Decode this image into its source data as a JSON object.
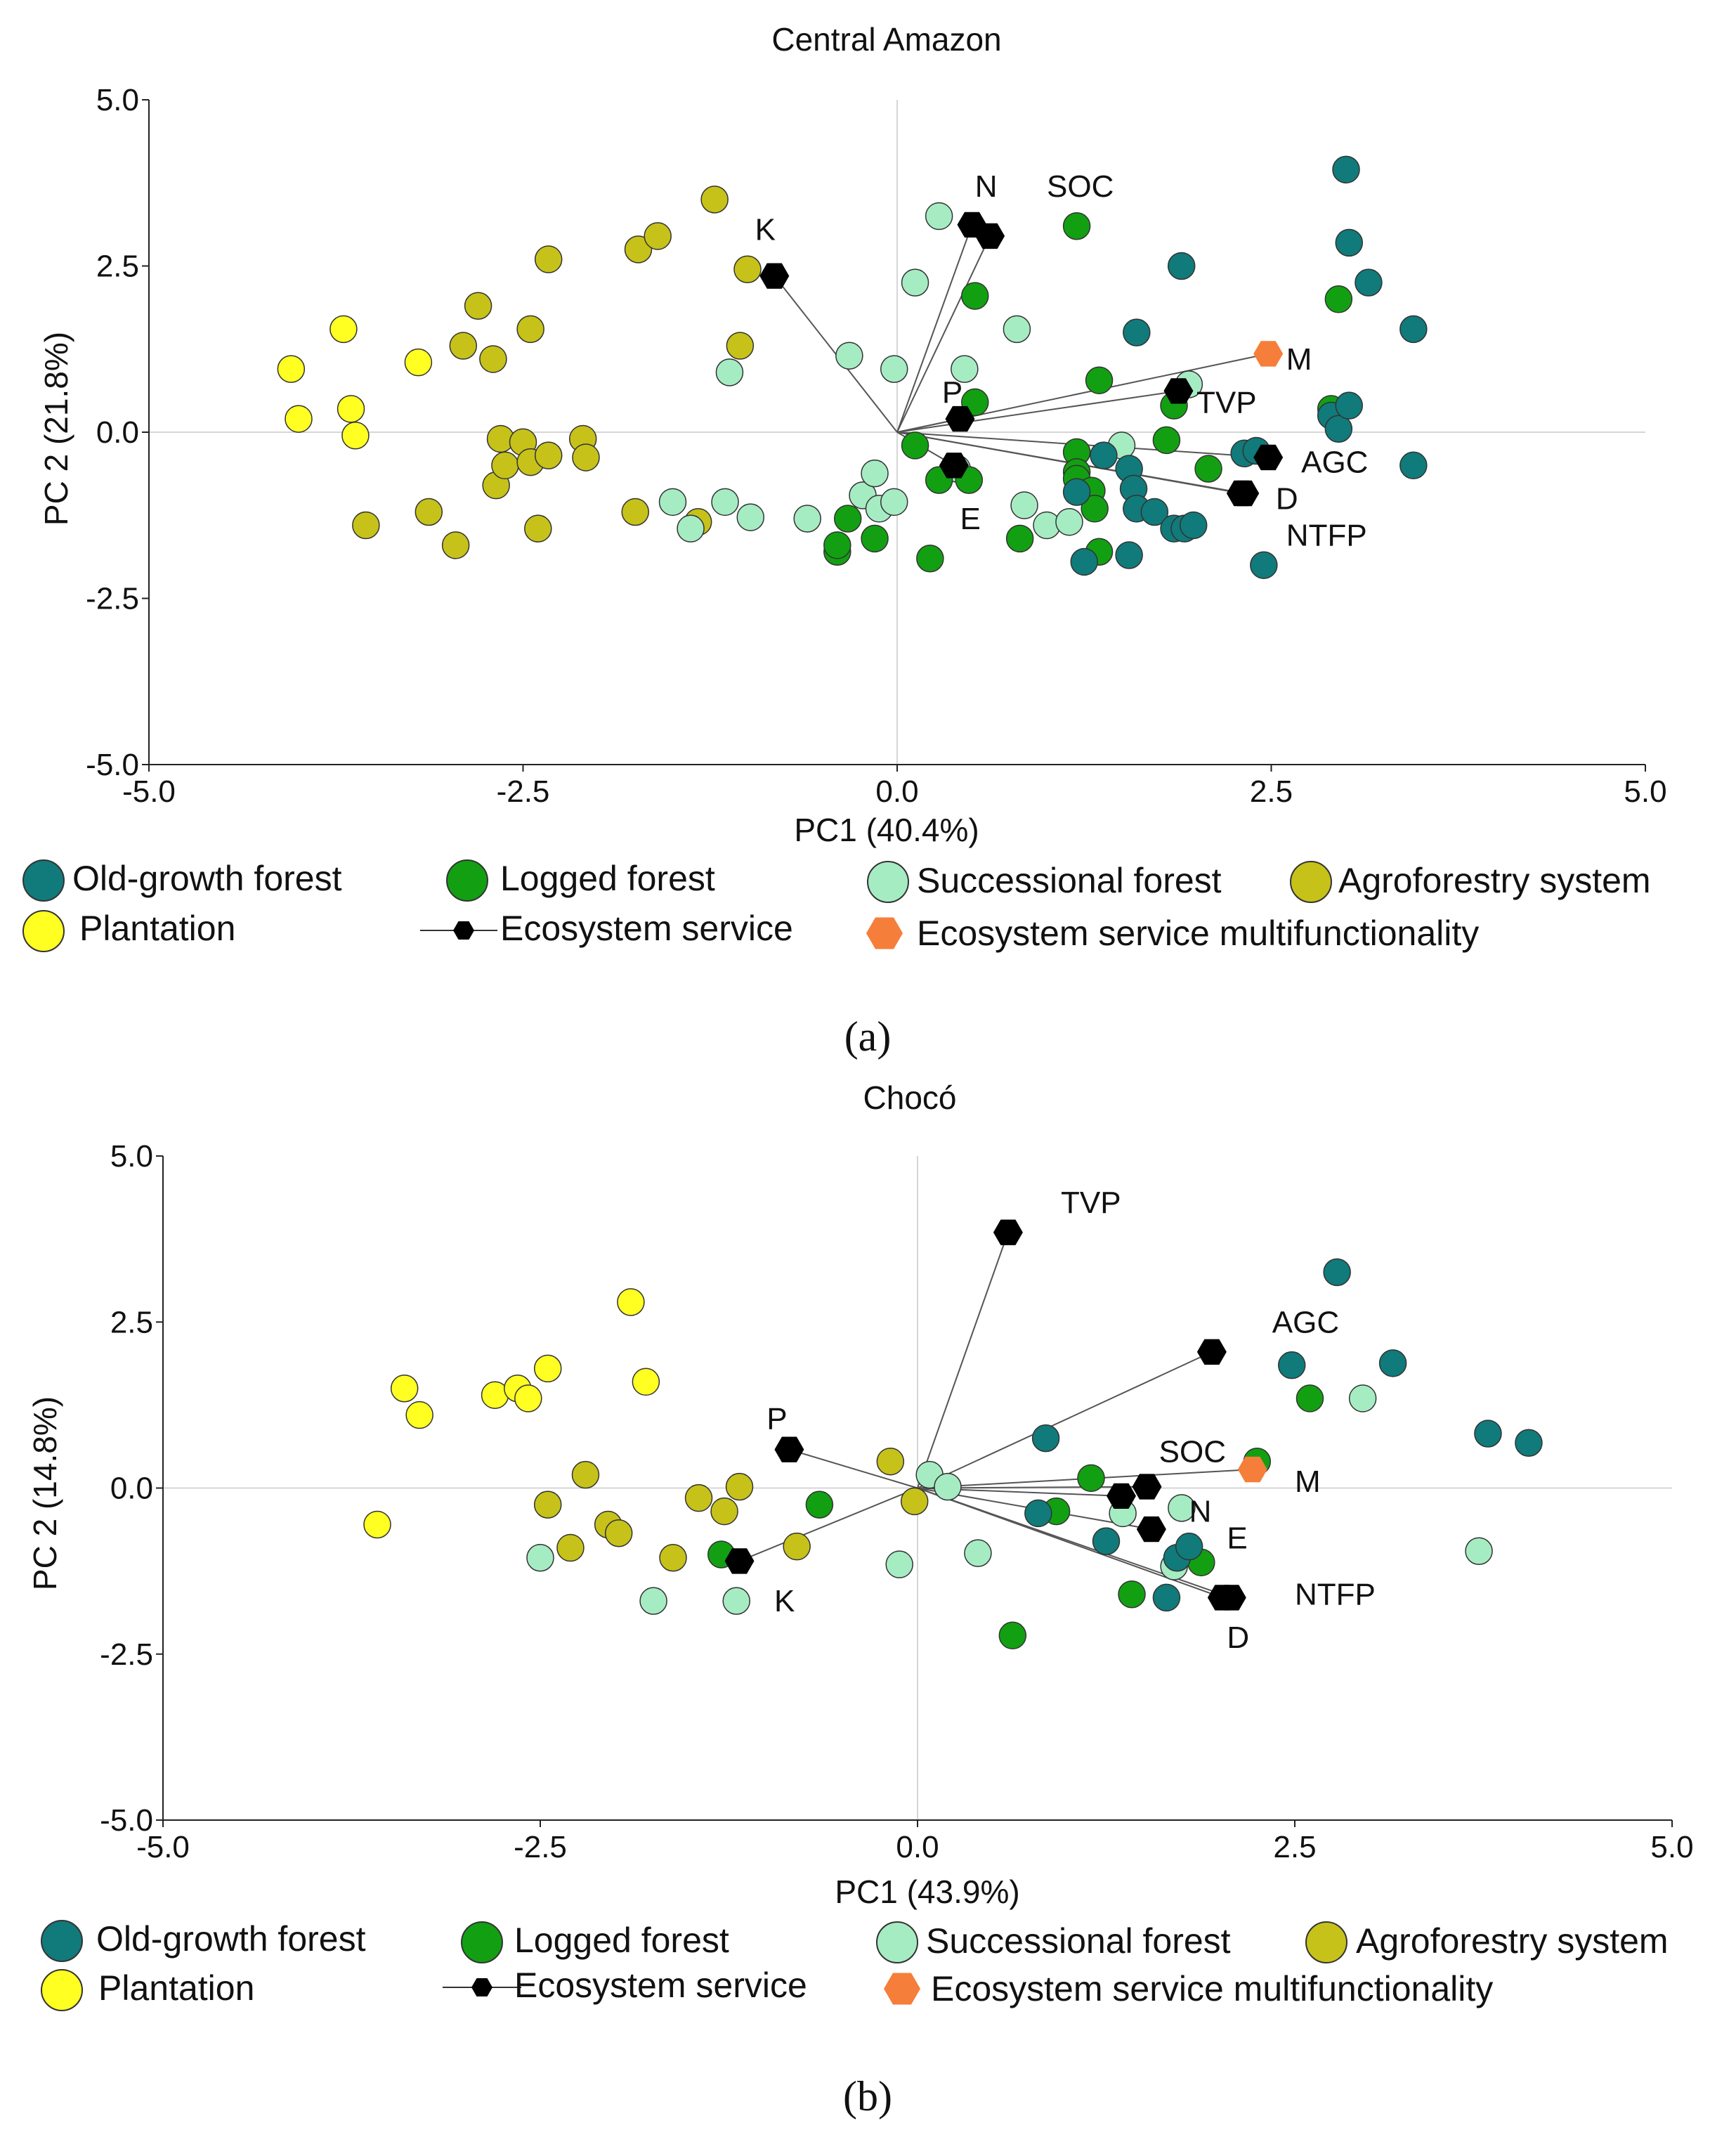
{
  "colors": {
    "old_growth": "#117a7a",
    "logged": "#12a012",
    "successional": "#a6ecc3",
    "agroforestry": "#c6c21a",
    "plantation": "#ffff22",
    "service": "#000000",
    "multifunctionality": "#f57e3a"
  },
  "legend": {
    "old_growth": "Old-growth forest",
    "logged": "Logged forest",
    "successional_a": "Successional forest",
    "successional_b": "Successional  forest",
    "agroforestry": "Agroforestry system",
    "plantation": "Plantation",
    "service": "Ecosystem service",
    "multifunctionality": "Ecosystem service multifunctionality"
  },
  "chart_data": [
    {
      "type": "scatter",
      "panel_label": "(a)",
      "title": "Central Amazon",
      "xlabel": "PC1 (40.4%)",
      "ylabel": "PC 2 (21.8%)",
      "xlim": [
        -5,
        5
      ],
      "ylim": [
        -5,
        5
      ],
      "xticks": [
        -5,
        -2.5,
        0,
        2.5,
        5
      ],
      "yticks": [
        -5,
        -2.5,
        0,
        2.5,
        5
      ],
      "xtick_labels": [
        "-5.0",
        "-2.5",
        "0.0",
        "2.5",
        "5.0"
      ],
      "ytick_labels": [
        "-5.0",
        "-2.5",
        "0.0",
        "2.5",
        "5.0"
      ],
      "series": [
        {
          "name": "Plantation",
          "key": "plantation",
          "points": [
            [
              -4.05,
              0.95
            ],
            [
              -4.0,
              0.2
            ],
            [
              -3.7,
              1.55
            ],
            [
              -3.65,
              0.35
            ],
            [
              -3.62,
              -0.05
            ],
            [
              -3.2,
              1.05
            ]
          ]
        },
        {
          "name": "Agroforestry system",
          "key": "agroforestry",
          "points": [
            [
              -3.55,
              -1.4
            ],
            [
              -3.13,
              -1.2
            ],
            [
              -2.95,
              -1.7
            ],
            [
              -2.9,
              1.3
            ],
            [
              -2.8,
              1.9
            ],
            [
              -2.7,
              1.1
            ],
            [
              -2.68,
              -0.8
            ],
            [
              -2.65,
              -0.1
            ],
            [
              -2.62,
              -0.5
            ],
            [
              -2.5,
              -0.15
            ],
            [
              -2.45,
              1.55
            ],
            [
              -2.45,
              -0.45
            ],
            [
              -2.4,
              -1.45
            ],
            [
              -2.33,
              2.6
            ],
            [
              -2.33,
              -0.35
            ],
            [
              -2.1,
              -0.1
            ],
            [
              -2.08,
              -0.38
            ],
            [
              -1.75,
              -1.2
            ],
            [
              -1.73,
              2.75
            ],
            [
              -1.6,
              2.95
            ],
            [
              -1.33,
              -1.35
            ],
            [
              -1.22,
              3.5
            ],
            [
              -1.05,
              1.3
            ],
            [
              -1.0,
              2.45
            ]
          ]
        },
        {
          "name": "Successional forest",
          "key": "successional",
          "points": [
            [
              -1.5,
              -1.05
            ],
            [
              -1.38,
              -1.45
            ],
            [
              -1.15,
              -1.05
            ],
            [
              -1.12,
              0.9
            ],
            [
              -0.98,
              -1.28
            ],
            [
              -0.6,
              -1.3
            ],
            [
              -0.32,
              1.15
            ],
            [
              -0.23,
              -0.95
            ],
            [
              -0.15,
              -0.62
            ],
            [
              -0.12,
              -1.15
            ],
            [
              -0.02,
              0.95
            ],
            [
              -0.02,
              -1.05
            ],
            [
              0.12,
              2.25
            ],
            [
              0.28,
              3.25
            ],
            [
              0.45,
              0.95
            ],
            [
              0.4,
              -0.55
            ],
            [
              0.8,
              1.55
            ],
            [
              0.85,
              -1.1
            ],
            [
              1.0,
              -1.4
            ],
            [
              1.15,
              -1.35
            ],
            [
              1.5,
              -0.2
            ],
            [
              1.95,
              0.72
            ]
          ]
        },
        {
          "name": "Logged forest",
          "key": "logged",
          "points": [
            [
              -0.4,
              -1.8
            ],
            [
              -0.4,
              -1.7
            ],
            [
              -0.33,
              -1.3
            ],
            [
              -0.15,
              -1.6
            ],
            [
              0.12,
              -0.2
            ],
            [
              0.22,
              -1.9
            ],
            [
              0.28,
              -0.72
            ],
            [
              0.48,
              -0.72
            ],
            [
              0.52,
              0.45
            ],
            [
              0.52,
              2.05
            ],
            [
              0.82,
              -1.6
            ],
            [
              1.2,
              -0.3
            ],
            [
              1.2,
              -0.6
            ],
            [
              1.2,
              -0.7
            ],
            [
              1.2,
              3.1
            ],
            [
              1.3,
              -0.88
            ],
            [
              1.32,
              -1.15
            ],
            [
              1.35,
              -1.8
            ],
            [
              1.35,
              0.78
            ],
            [
              1.8,
              -0.12
            ],
            [
              1.85,
              0.4
            ],
            [
              2.08,
              -0.55
            ],
            [
              2.9,
              0.35
            ],
            [
              2.95,
              2.0
            ]
          ]
        },
        {
          "name": "Old-growth forest",
          "key": "old_growth",
          "points": [
            [
              1.2,
              -0.9
            ],
            [
              1.25,
              -1.95
            ],
            [
              1.38,
              -0.35
            ],
            [
              1.55,
              -0.55
            ],
            [
              1.55,
              -1.85
            ],
            [
              1.58,
              -0.85
            ],
            [
              1.6,
              1.5
            ],
            [
              1.6,
              -1.15
            ],
            [
              1.72,
              -1.2
            ],
            [
              1.85,
              -1.45
            ],
            [
              1.9,
              2.5
            ],
            [
              1.92,
              -1.45
            ],
            [
              1.98,
              -1.4
            ],
            [
              2.32,
              -0.32
            ],
            [
              2.4,
              -0.28
            ],
            [
              2.45,
              -2.0
            ],
            [
              2.9,
              0.25
            ],
            [
              2.95,
              0.05
            ],
            [
              3.0,
              3.95
            ],
            [
              3.02,
              0.4
            ],
            [
              3.02,
              2.85
            ],
            [
              3.15,
              2.25
            ],
            [
              3.45,
              1.55
            ],
            [
              3.45,
              -0.5
            ]
          ]
        }
      ],
      "vectors": [
        {
          "label": "K",
          "x": -0.82,
          "y": 2.35,
          "tx": -0.95,
          "ty": 3.05
        },
        {
          "label": "N",
          "x": 0.5,
          "y": 3.12,
          "tx": 0.52,
          "ty": 3.7
        },
        {
          "label": "SOC",
          "x": 0.62,
          "y": 2.95,
          "tx": 1.0,
          "ty": 3.7
        },
        {
          "label": "P",
          "x": 0.42,
          "y": 0.2,
          "tx": 0.3,
          "ty": 0.6
        },
        {
          "label": "E",
          "x": 0.38,
          "y": -0.5,
          "tx": 0.42,
          "ty": -1.3
        },
        {
          "label": "TVP",
          "x": 1.88,
          "y": 0.62,
          "tx": 2.0,
          "ty": 0.45
        },
        {
          "label": "AGC",
          "x": 2.48,
          "y": -0.38,
          "tx": 2.7,
          "ty": -0.45
        },
        {
          "label": "D",
          "x": 2.3,
          "y": -0.92,
          "tx": 2.53,
          "ty": -1.0
        },
        {
          "label": "NTFP",
          "x": 2.32,
          "y": -0.92,
          "tx": 2.6,
          "ty": -1.55
        }
      ],
      "multifunctionality": {
        "label": "M",
        "x": 2.48,
        "y": 1.18,
        "tx": 2.6,
        "ty": 1.1
      }
    },
    {
      "type": "scatter",
      "panel_label": "(b)",
      "title": "Chocó",
      "xlabel": "PC1 (43.9%)",
      "ylabel": "PC 2 (14.8%)",
      "xlim": [
        -5,
        5
      ],
      "ylim": [
        -5,
        5
      ],
      "xticks": [
        -5,
        -2.5,
        0,
        2.5,
        5
      ],
      "yticks": [
        -5,
        -2.5,
        0,
        2.5,
        5
      ],
      "xtick_labels": [
        "-5.0",
        "-2.5",
        "0.0",
        "2.5",
        "5.0"
      ],
      "ytick_labels": [
        "-5.0",
        "-2.5",
        "0.0",
        "2.5",
        "5.0"
      ],
      "series": [
        {
          "name": "Plantation",
          "key": "plantation",
          "points": [
            [
              -3.58,
              -0.55
            ],
            [
              -3.4,
              1.5
            ],
            [
              -3.3,
              1.1
            ],
            [
              -2.8,
              1.4
            ],
            [
              -2.65,
              1.5
            ],
            [
              -2.58,
              1.35
            ],
            [
              -2.45,
              1.8
            ],
            [
              -1.9,
              2.8
            ],
            [
              -1.8,
              1.6
            ]
          ]
        },
        {
          "name": "Agroforestry system",
          "key": "agroforestry",
          "points": [
            [
              -2.45,
              -0.25
            ],
            [
              -2.3,
              -0.9
            ],
            [
              -2.2,
              0.2
            ],
            [
              -2.05,
              -0.55
            ],
            [
              -1.98,
              -0.68
            ],
            [
              -1.62,
              -1.05
            ],
            [
              -1.45,
              -0.15
            ],
            [
              -1.28,
              -0.35
            ],
            [
              -1.18,
              0.02
            ],
            [
              -0.8,
              -0.88
            ],
            [
              -0.18,
              0.4
            ],
            [
              -0.02,
              -0.2
            ]
          ]
        },
        {
          "name": "Successional forest",
          "key": "successional",
          "points": [
            [
              -2.5,
              -1.05
            ],
            [
              -1.75,
              -1.7
            ],
            [
              -1.2,
              -1.7
            ],
            [
              -0.12,
              -1.15
            ],
            [
              0.08,
              0.2
            ],
            [
              0.2,
              0.02
            ],
            [
              0.4,
              -0.98
            ],
            [
              1.36,
              -0.38
            ],
            [
              1.7,
              -1.18
            ],
            [
              1.75,
              -0.3
            ],
            [
              2.95,
              1.35
            ],
            [
              3.72,
              -0.95
            ]
          ]
        },
        {
          "name": "Logged forest",
          "key": "logged",
          "points": [
            [
              -1.3,
              -1.0
            ],
            [
              -0.65,
              -0.25
            ],
            [
              0.63,
              -2.22
            ],
            [
              0.92,
              -0.35
            ],
            [
              1.15,
              0.15
            ],
            [
              1.42,
              -1.6
            ],
            [
              1.88,
              -1.12
            ],
            [
              2.25,
              0.4
            ],
            [
              2.6,
              1.35
            ]
          ]
        },
        {
          "name": "Old-growth forest",
          "key": "old_growth",
          "points": [
            [
              0.85,
              0.75
            ],
            [
              0.8,
              -0.38
            ],
            [
              1.25,
              -0.8
            ],
            [
              1.65,
              -1.65
            ],
            [
              1.72,
              -1.05
            ],
            [
              1.8,
              -0.88
            ],
            [
              2.48,
              1.85
            ],
            [
              2.78,
              3.25
            ],
            [
              3.15,
              1.88
            ],
            [
              3.78,
              0.82
            ],
            [
              4.05,
              0.68
            ]
          ]
        }
      ],
      "vectors": [
        {
          "label": "TVP",
          "x": 0.6,
          "y": 3.85,
          "tx": 0.95,
          "ty": 4.3
        },
        {
          "label": "AGC",
          "x": 1.95,
          "y": 2.05,
          "tx": 2.35,
          "ty": 2.5
        },
        {
          "label": "P",
          "x": -0.85,
          "y": 0.58,
          "tx": -1.0,
          "ty": 1.05
        },
        {
          "label": "K",
          "x": -1.18,
          "y": -1.1,
          "tx": -0.95,
          "ty": -1.7
        },
        {
          "label": "SOC",
          "x": 1.52,
          "y": 0.02,
          "tx": 1.6,
          "ty": 0.55
        },
        {
          "label": "N",
          "x": 1.35,
          "y": -0.12,
          "tx": 1.8,
          "ty": -0.35
        },
        {
          "label": "E",
          "x": 1.55,
          "y": -0.62,
          "tx": 2.05,
          "ty": -0.75
        },
        {
          "label": "NTFP",
          "x": 2.08,
          "y": -1.65,
          "tx": 2.5,
          "ty": -1.6
        },
        {
          "label": "D",
          "x": 2.02,
          "y": -1.65,
          "tx": 2.05,
          "ty": -2.25
        }
      ],
      "multifunctionality": {
        "label": "M",
        "x": 2.22,
        "y": 0.28,
        "tx": 2.5,
        "ty": 0.1
      }
    }
  ]
}
